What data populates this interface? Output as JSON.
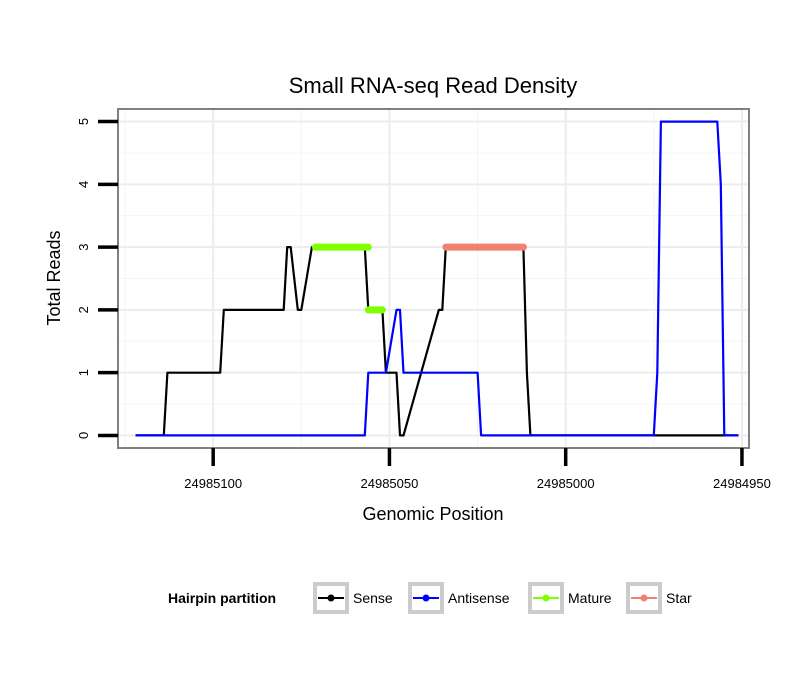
{
  "chart_data": {
    "type": "line",
    "title": "Small RNA-seq Read Density",
    "xlabel": "Genomic Position",
    "ylabel": "Total Reads",
    "xlim": [
      24985127,
      24984948
    ],
    "x_reversed": true,
    "ylim": [
      -0.2,
      5.2
    ],
    "x_ticks": [
      24985100,
      24985050,
      24985000,
      24984950
    ],
    "x_tick_labels": [
      "24985100",
      "24985050",
      "24985000",
      "24984950"
    ],
    "y_ticks": [
      0,
      1,
      2,
      3,
      4,
      5
    ],
    "y_tick_labels": [
      "0",
      "1",
      "2",
      "3",
      "4",
      "5"
    ],
    "grid": true,
    "legend": {
      "title": "Hairpin partition",
      "position": "bottom",
      "entries": [
        "Sense",
        "Antisense",
        "Mature",
        "Star"
      ]
    },
    "series": [
      {
        "name": "Sense",
        "color": "#000000",
        "style": "line",
        "x": [
          24985122,
          24985114,
          24985113,
          24985098,
          24985097,
          24985080,
          24985079,
          24985078,
          24985076,
          24985075,
          24985072,
          24985071,
          24985057,
          24985056,
          24985055,
          24985052,
          24985051,
          24985048,
          24985047,
          24985046,
          24985036,
          24985035,
          24985034,
          24985033,
          24985012,
          24985011,
          24985010,
          24984951
        ],
        "y": [
          0,
          0,
          1,
          1,
          2,
          2,
          3,
          3,
          2,
          2,
          3,
          3,
          3,
          2,
          2,
          2,
          1,
          1,
          0,
          0,
          2,
          2,
          3,
          3,
          3,
          1,
          0,
          0
        ]
      },
      {
        "name": "Antisense",
        "color": "#0000ff",
        "style": "line",
        "x": [
          24985122,
          24985057,
          24985056,
          24985052,
          24985051,
          24985048,
          24985047,
          24985046,
          24985044,
          24985025,
          24985024,
          24985009,
          24984975,
          24984974,
          24984973,
          24984957,
          24984956,
          24984955,
          24984951
        ],
        "y": [
          0,
          0,
          1,
          1,
          1,
          2,
          2,
          1,
          1,
          1,
          0,
          0,
          0,
          1,
          5,
          5,
          4,
          0,
          0
        ]
      },
      {
        "name": "Mature",
        "color": "#7fff00",
        "style": "segment",
        "segments": [
          {
            "x_start": 24985071,
            "x_end": 24985056,
            "y": 3
          },
          {
            "x_start": 24985056,
            "x_end": 24985052,
            "y": 2
          }
        ]
      },
      {
        "name": "Star",
        "color": "#f08070",
        "style": "segment",
        "segments": [
          {
            "x_start": 24985034,
            "x_end": 24985012,
            "y": 3
          }
        ]
      }
    ]
  }
}
